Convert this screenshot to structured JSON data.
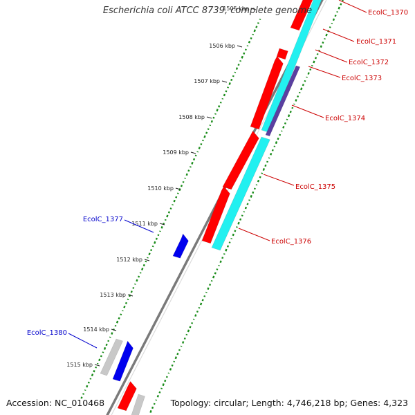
{
  "title": "Escherichia coli ATCC 8739, complete genome",
  "footer": {
    "accession": "Accession: NC_010468",
    "topology": "Topology: circular; Length: 4,746,218 bp; Genes: 4,323"
  },
  "colors": {
    "backbone": "#7a7a7a",
    "forward_gene": "#ff0000",
    "forward_gene_alt": "#0000ee",
    "reverse_cds": "#22f0f0",
    "rna_gene": "#5a3fa0",
    "other_gene": "#c8c8c8",
    "gc_ticks": "#1a8c1a",
    "red_label": "#cc0000",
    "blue_label": "#0000cc"
  },
  "tick_labels": [
    "1505 kbp",
    "1506 kbp",
    "1507 kbp",
    "1508 kbp",
    "1509 kbp",
    "1510 kbp",
    "1511 kbp",
    "1512 kbp",
    "1513 kbp",
    "1514 kbp",
    "1515 kbp"
  ],
  "gene_labels": [
    {
      "text": "EcolC_1370",
      "color": "red"
    },
    {
      "text": "EcolC_1371",
      "color": "red"
    },
    {
      "text": "EcolC_1372",
      "color": "red"
    },
    {
      "text": "EcolC_1373",
      "color": "red"
    },
    {
      "text": "EcolC_1374",
      "color": "red"
    },
    {
      "text": "EcolC_1375",
      "color": "red"
    },
    {
      "text": "EcolC_1376",
      "color": "red"
    },
    {
      "text": "EcolC_1377",
      "color": "blue"
    },
    {
      "text": "EcolC_1380",
      "color": "blue"
    }
  ]
}
